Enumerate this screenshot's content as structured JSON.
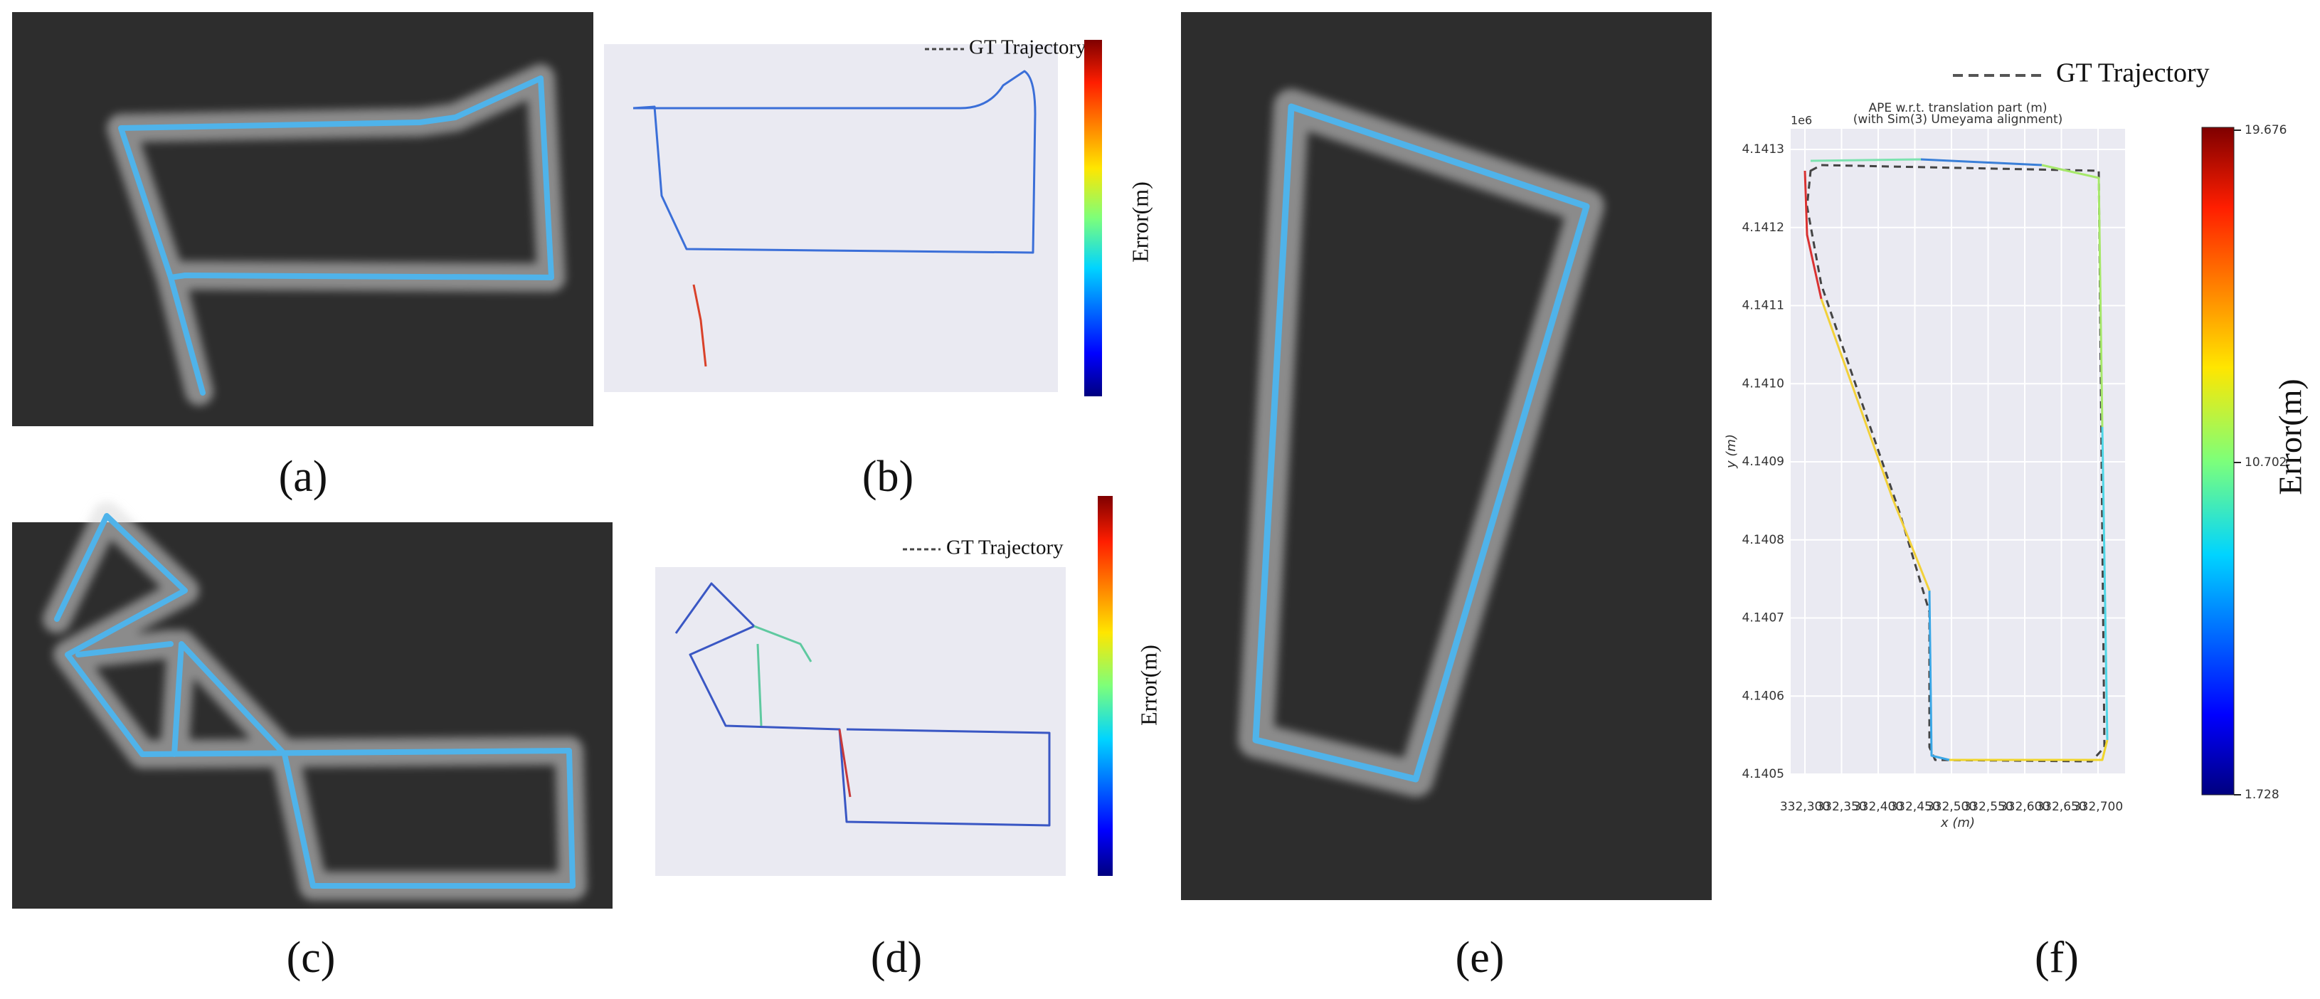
{
  "panels": [
    {
      "caption": "(a)"
    },
    {
      "caption": "(b)",
      "legend": "GT Trajectory",
      "colorbar_label": "Error(m)"
    },
    {
      "caption": "(c)"
    },
    {
      "caption": "(d)",
      "legend": "GT Trajectory",
      "colorbar_label": "Error(m)"
    },
    {
      "caption": "(e)"
    },
    {
      "caption": "(f)",
      "legend": "GT Trajectory",
      "colorbar_label": "Error(m)",
      "title": "APE w.r.t. translation part (m)",
      "subtitle": "(with Sim(3) Umeyama alignment)",
      "x_label": "x (m)",
      "y_label": "y (m)",
      "y_offset": "1e6",
      "x_ticks": [
        "332,300",
        "332,350",
        "332,400",
        "332,450",
        "332,500",
        "332,550",
        "332,600",
        "332,650",
        "332,700"
      ],
      "y_ticks": [
        "4.1405",
        "4.1406",
        "4.1407",
        "4.1408",
        "4.1409",
        "4.1410",
        "4.1411",
        "4.1412",
        "4.1413"
      ],
      "colorbar_ticks": [
        "19.676",
        "10.702",
        "1.728"
      ]
    }
  ]
}
